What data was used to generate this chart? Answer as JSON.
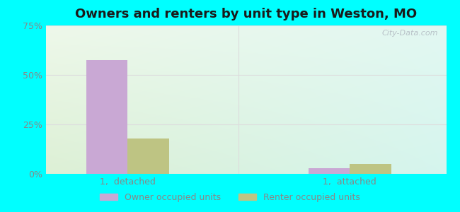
{
  "title": "Owners and renters by unit type in Weston, MO",
  "title_fontsize": 13,
  "categories": [
    "1,  detached",
    "1,  attached"
  ],
  "owner_values": [
    57.5,
    3.0
  ],
  "renter_values": [
    18.0,
    5.0
  ],
  "owner_color": "#c9a8d4",
  "renter_color": "#bec483",
  "ylim": [
    0,
    75
  ],
  "yticks": [
    0,
    25,
    50,
    75
  ],
  "yticklabels": [
    "0%",
    "25%",
    "50%",
    "75%"
  ],
  "bar_width": 0.28,
  "outer_bg": "#00ffff",
  "legend_owner": "Owner occupied units",
  "legend_renter": "Renter occupied units",
  "watermark": "City-Data.com",
  "tick_color": "#888888",
  "grid_color": "#dddddd",
  "x_positions": [
    0.55,
    2.05
  ],
  "xlim": [
    0.0,
    2.7
  ]
}
